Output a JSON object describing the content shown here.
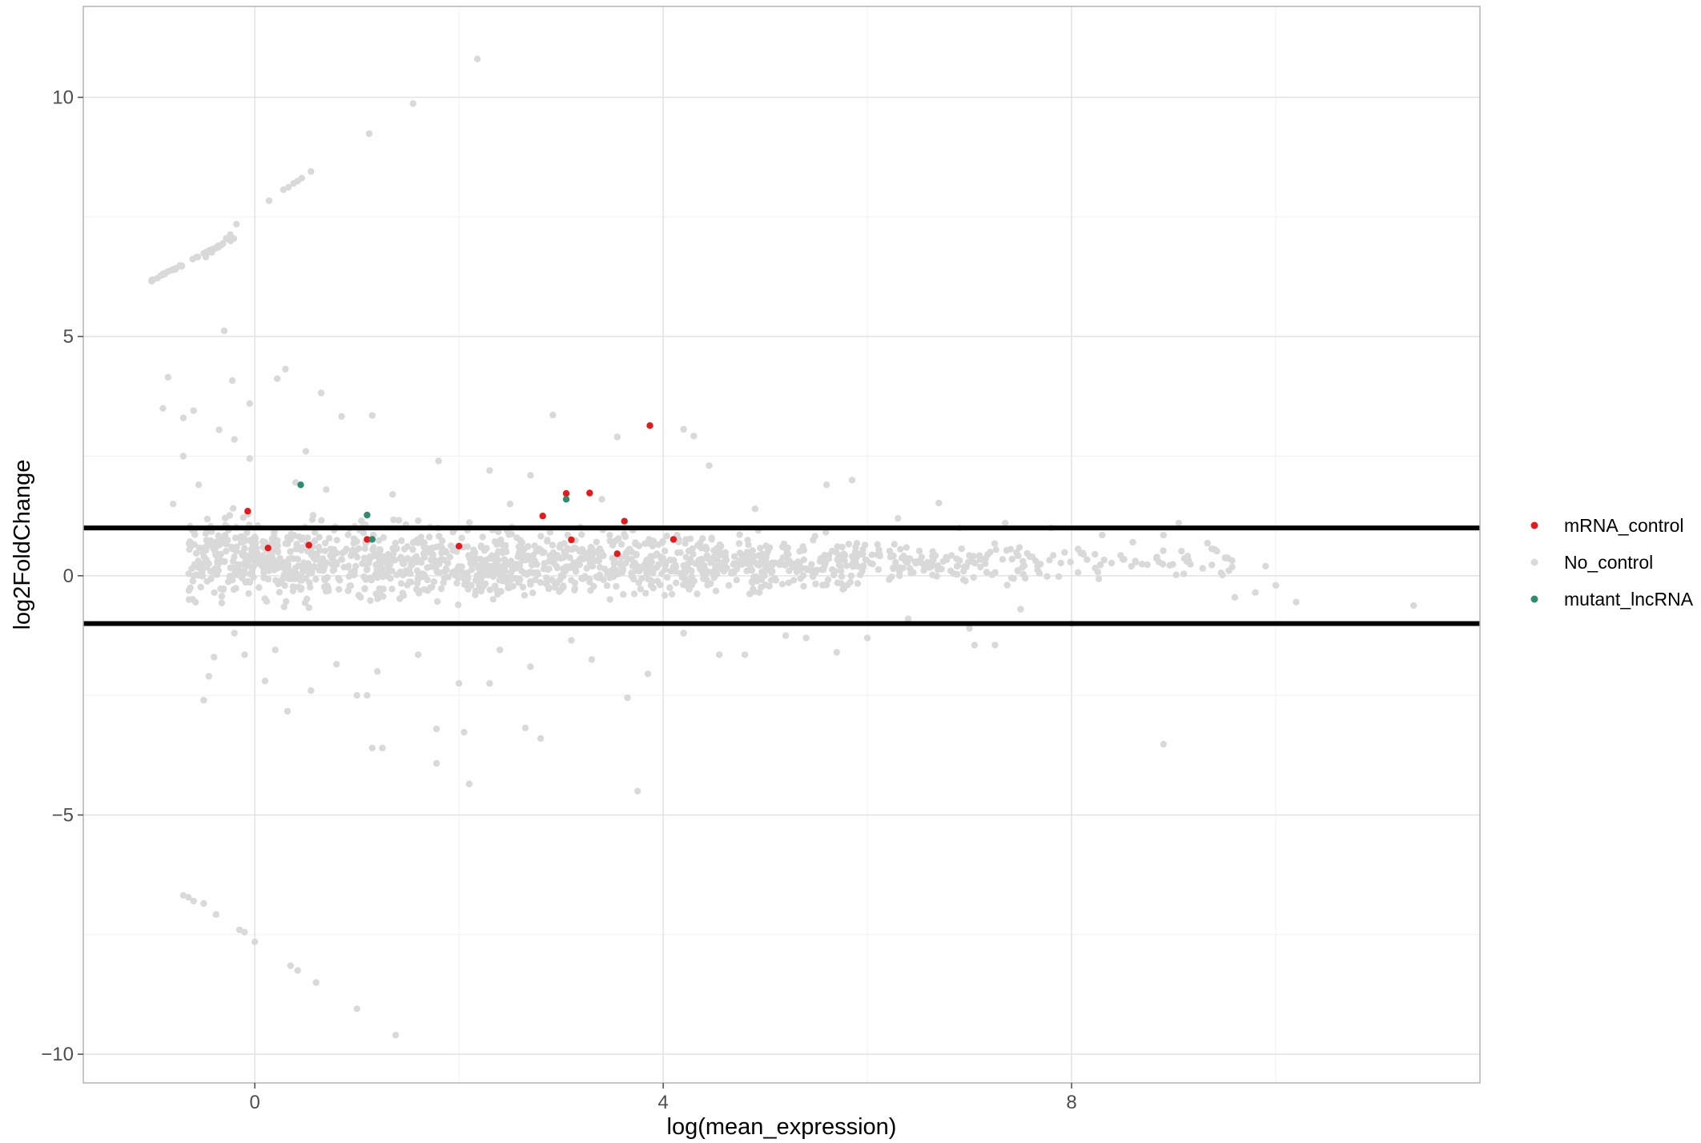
{
  "chart_data": {
    "type": "scatter",
    "title": "",
    "xlabel": "log(mean_expression)",
    "ylabel": "log2FoldChange",
    "xlim": [
      -1.68,
      12.0
    ],
    "ylim": [
      -10.6,
      11.9
    ],
    "x_ticks": [
      0,
      4,
      8
    ],
    "x_tick_labels": [
      "0",
      "4",
      "8"
    ],
    "y_ticks": [
      -10,
      -5,
      0,
      5,
      10
    ],
    "y_tick_labels": [
      "−10",
      "−5",
      "0",
      "5",
      "10"
    ],
    "x_grid_major": [
      0,
      4,
      8
    ],
    "x_grid_minor": [
      2,
      6,
      10
    ],
    "y_grid_major": [
      -10,
      -5,
      0,
      5,
      10
    ],
    "y_grid_minor": [
      -7.5,
      -2.5,
      2.5,
      7.5
    ],
    "grid": true,
    "legend_position": "right",
    "reference_lines": [
      {
        "y": 1,
        "color": "#000000"
      },
      {
        "y": -1,
        "color": "#000000"
      }
    ],
    "series": [
      {
        "name": "mRNA_control",
        "color": "#e41a1c",
        "points": [
          [
            -0.07,
            1.35
          ],
          [
            0.13,
            0.58
          ],
          [
            0.53,
            0.64
          ],
          [
            1.1,
            0.76
          ],
          [
            2.82,
            1.25
          ],
          [
            3.05,
            1.72
          ],
          [
            3.28,
            1.73
          ],
          [
            3.62,
            1.14
          ],
          [
            3.87,
            3.14
          ],
          [
            4.1,
            0.76
          ],
          [
            3.55,
            0.46
          ],
          [
            3.1,
            0.75
          ],
          [
            2.0,
            0.62
          ]
        ]
      },
      {
        "name": "No_control",
        "color": "#d9d9d9",
        "points": [
          [
            2.18,
            10.8
          ],
          [
            1.55,
            9.87
          ],
          [
            1.12,
            9.24
          ],
          [
            -0.18,
            7.35
          ],
          [
            0.14,
            7.84
          ],
          [
            0.28,
            8.07
          ],
          [
            0.38,
            8.2
          ],
          [
            0.46,
            8.31
          ],
          [
            0.55,
            8.45
          ],
          [
            0.33,
            8.12
          ],
          [
            0.42,
            8.25
          ],
          [
            -0.3,
            5.12
          ],
          [
            -0.22,
            4.08
          ],
          [
            0.3,
            4.32
          ],
          [
            0.22,
            4.12
          ],
          [
            0.65,
            3.82
          ],
          [
            0.85,
            3.33
          ],
          [
            1.15,
            3.35
          ],
          [
            2.92,
            3.36
          ],
          [
            4.2,
            3.06
          ],
          [
            4.3,
            2.92
          ],
          [
            3.55,
            2.9
          ],
          [
            5.85,
            2.0
          ],
          [
            6.7,
            1.52
          ],
          [
            7.35,
            1.1
          ],
          [
            9.05,
            1.1
          ],
          [
            8.9,
            0.85
          ],
          [
            9.6,
            -0.45
          ],
          [
            10.2,
            -0.55
          ],
          [
            11.35,
            -0.62
          ],
          [
            8.9,
            -3.52
          ],
          [
            3.75,
            -4.5
          ],
          [
            2.1,
            -4.35
          ],
          [
            1.78,
            -3.92
          ],
          [
            1.15,
            -3.6
          ],
          [
            1.25,
            -3.6
          ],
          [
            1.78,
            -3.2
          ],
          [
            2.05,
            -3.27
          ],
          [
            2.65,
            -3.18
          ],
          [
            2.8,
            -3.4
          ],
          [
            3.65,
            -2.55
          ],
          [
            1.0,
            -2.5
          ],
          [
            1.1,
            -2.5
          ],
          [
            2.3,
            -2.25
          ],
          [
            2.0,
            -2.25
          ],
          [
            3.85,
            -2.05
          ],
          [
            4.55,
            -1.65
          ],
          [
            4.8,
            -1.65
          ],
          [
            5.7,
            -1.6
          ],
          [
            7.05,
            -1.45
          ],
          [
            7.25,
            -1.45
          ],
          [
            5.4,
            -1.3
          ],
          [
            6.0,
            -1.3
          ],
          [
            7.0,
            -1.1
          ],
          [
            -0.5,
            -2.6
          ],
          [
            -0.45,
            -2.1
          ],
          [
            -0.4,
            -1.7
          ],
          [
            -0.1,
            -1.65
          ],
          [
            0.32,
            -2.83
          ],
          [
            -0.7,
            -6.68
          ],
          [
            -0.65,
            -6.72
          ],
          [
            -0.6,
            -6.8
          ],
          [
            -0.5,
            -6.85
          ],
          [
            -0.38,
            -7.08
          ],
          [
            -0.15,
            -7.4
          ],
          [
            -0.1,
            -7.45
          ],
          [
            0.0,
            -7.65
          ],
          [
            0.35,
            -8.15
          ],
          [
            0.42,
            -8.25
          ],
          [
            0.6,
            -8.5
          ],
          [
            1.0,
            -9.05
          ],
          [
            1.38,
            -9.6
          ],
          [
            -0.85,
            4.15
          ],
          [
            -0.9,
            3.5
          ],
          [
            -0.7,
            3.3
          ],
          [
            -0.6,
            3.45
          ],
          [
            -0.35,
            3.05
          ],
          [
            -0.2,
            2.85
          ],
          [
            -0.05,
            2.45
          ],
          [
            0.5,
            2.6
          ],
          [
            1.8,
            2.4
          ],
          [
            2.3,
            2.2
          ],
          [
            2.7,
            2.1
          ],
          [
            4.45,
            2.3
          ],
          [
            5.6,
            1.9
          ],
          [
            -0.05,
            3.6
          ],
          [
            -0.7,
            2.5
          ],
          [
            -0.8,
            1.5
          ],
          [
            -0.55,
            1.9
          ],
          [
            0.4,
            1.95
          ],
          [
            0.7,
            1.8
          ],
          [
            1.35,
            1.7
          ],
          [
            2.5,
            1.5
          ],
          [
            3.4,
            1.6
          ],
          [
            4.9,
            1.4
          ],
          [
            6.3,
            1.2
          ],
          [
            6.9,
            1.0
          ],
          [
            7.8,
            1.0
          ],
          [
            8.3,
            0.85
          ],
          [
            8.6,
            0.7
          ],
          [
            9.4,
            0.55
          ],
          [
            9.9,
            0.2
          ],
          [
            10.0,
            -0.2
          ],
          [
            9.8,
            -0.35
          ],
          [
            8.0,
            -1.0
          ],
          [
            7.5,
            -0.7
          ],
          [
            6.4,
            -0.9
          ],
          [
            5.2,
            -1.25
          ],
          [
            4.2,
            -1.2
          ],
          [
            3.1,
            -1.35
          ],
          [
            2.4,
            -1.55
          ],
          [
            1.6,
            -1.65
          ],
          [
            0.8,
            -1.85
          ],
          [
            0.2,
            -1.55
          ],
          [
            -0.2,
            -1.2
          ],
          [
            0.1,
            -2.2
          ],
          [
            0.55,
            -2.4
          ],
          [
            1.2,
            -2.0
          ],
          [
            2.7,
            -1.9
          ],
          [
            3.3,
            -1.75
          ],
          [
            -0.35,
            6.9
          ],
          [
            -0.28,
            7.05
          ],
          [
            -0.24,
            7.13
          ],
          [
            -0.42,
            6.76
          ],
          [
            -0.48,
            6.66
          ],
          [
            -0.9,
            6.31
          ],
          [
            -0.85,
            6.36
          ]
        ],
        "clouds": [
          {
            "x": [
              -0.65,
              0.6
            ],
            "y": [
              -0.9,
              1.6
            ],
            "count": 330
          },
          {
            "x": [
              0.6,
              2.5
            ],
            "y": [
              -0.9,
              1.4
            ],
            "count": 420
          },
          {
            "x": [
              2.5,
              4.5
            ],
            "y": [
              -0.75,
              1.3
            ],
            "count": 380
          },
          {
            "x": [
              4.5,
              6.0
            ],
            "y": [
              -0.5,
              1.0
            ],
            "count": 230
          },
          {
            "x": [
              6.0,
              7.8
            ],
            "y": [
              -0.35,
              0.9
            ],
            "count": 120
          },
          {
            "x": [
              7.8,
              9.6
            ],
            "y": [
              -0.3,
              0.8
            ],
            "count": 55
          }
        ],
        "diagonal_cluster": {
          "x": [
            -1.05,
            -0.2
          ],
          "y": [
            6.12,
            7.05
          ],
          "count": 40
        }
      },
      {
        "name": "mutant_lncRNA",
        "color": "#2e8b6e",
        "points": [
          [
            0.45,
            1.9
          ],
          [
            1.1,
            1.27
          ],
          [
            3.05,
            1.6
          ],
          [
            1.15,
            0.76
          ]
        ]
      }
    ]
  }
}
